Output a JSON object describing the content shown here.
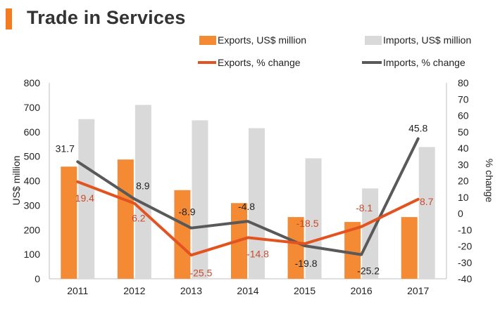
{
  "header": {
    "title": "Trade in Services"
  },
  "colors": {
    "exports_bar": "#f58a35",
    "imports_bar": "#d9d9d9",
    "exports_line": "#e2531f",
    "imports_line": "#595959",
    "exports_label": "#c94a2a",
    "imports_label": "#222222",
    "accent": "#f47b20"
  },
  "chart_data": {
    "type": "bar",
    "title": "Trade in Services",
    "categories": [
      "2011",
      "2012",
      "2013",
      "2014",
      "2015",
      "2016",
      "2017"
    ],
    "ylabel": "US$ million",
    "y2label": "% change",
    "ylim": [
      0,
      800
    ],
    "y2lim": [
      -40,
      80
    ],
    "yticks": [
      "0",
      "100",
      "200",
      "300",
      "400",
      "500",
      "600",
      "700",
      "800"
    ],
    "y2ticks": [
      "-40",
      "-30",
      "-20",
      "-10",
      "0",
      "10",
      "20",
      "30",
      "40",
      "50",
      "60",
      "70",
      "80"
    ],
    "legend_position": "top",
    "series": [
      {
        "name": "Exports, US$ million",
        "kind": "bar",
        "axis": "left",
        "values": [
          458,
          487,
          362,
          309,
          252,
          232,
          252
        ]
      },
      {
        "name": "Imports, US$ million",
        "kind": "bar",
        "axis": "left",
        "values": [
          652,
          710,
          647,
          615,
          492,
          369,
          538
        ]
      },
      {
        "name": "Exports, % change",
        "kind": "line",
        "axis": "right",
        "values": [
          19.4,
          6.2,
          -25.5,
          -14.8,
          -18.5,
          -8.1,
          8.7
        ],
        "labels": [
          "19.4",
          "6.2",
          "-25.5",
          "-14.8",
          "-18.5",
          "-8.1",
          "8.7"
        ]
      },
      {
        "name": "Imports, % change",
        "kind": "line",
        "axis": "right",
        "values": [
          31.7,
          8.9,
          -8.9,
          -4.8,
          -19.8,
          -25.2,
          45.8
        ],
        "labels": [
          "31.7",
          "8.9",
          "-8.9",
          "-4.8",
          "-19.8",
          "-25.2",
          "45.8"
        ]
      }
    ]
  }
}
